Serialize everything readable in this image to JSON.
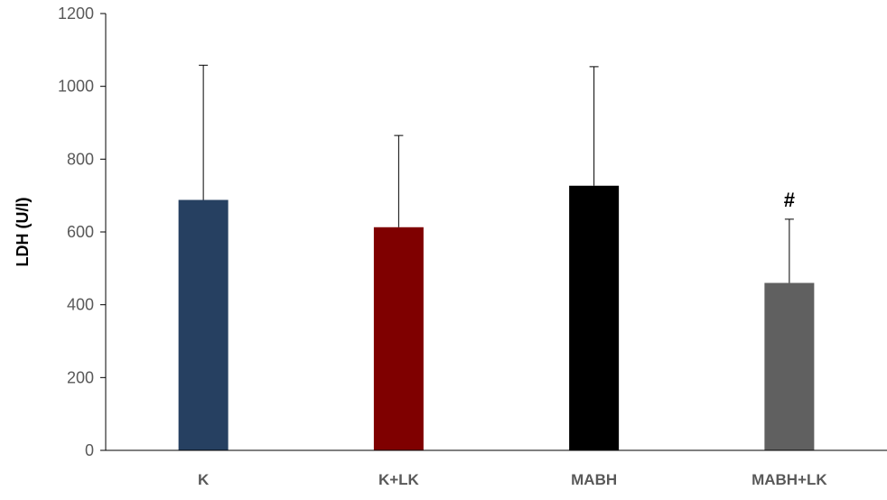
{
  "chart_data": {
    "type": "bar",
    "title": "",
    "xlabel": "",
    "ylabel": "LDH (U/l)",
    "ylim": [
      0,
      1200
    ],
    "yticks": [
      0,
      200,
      400,
      600,
      800,
      1000,
      1200
    ],
    "grid": false,
    "categories": [
      "K",
      "K+LK",
      "MABH",
      "MABH+LK"
    ],
    "values": [
      688,
      613,
      727,
      460
    ],
    "error_upper": [
      370,
      252,
      327,
      175
    ],
    "colors": [
      "#264061",
      "#7f0000",
      "#000000",
      "#606060"
    ],
    "annotations": [
      {
        "category_index": 3,
        "text": "#"
      }
    ]
  }
}
